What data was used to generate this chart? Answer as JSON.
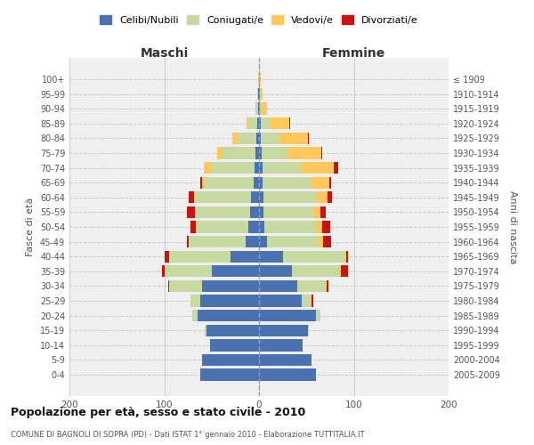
{
  "age_groups": [
    "0-4",
    "5-9",
    "10-14",
    "15-19",
    "20-24",
    "25-29",
    "30-34",
    "35-39",
    "40-44",
    "45-49",
    "50-54",
    "55-59",
    "60-64",
    "65-69",
    "70-74",
    "75-79",
    "80-84",
    "85-89",
    "90-94",
    "95-99",
    "100+"
  ],
  "birth_years": [
    "2005-2009",
    "2000-2004",
    "1995-1999",
    "1990-1994",
    "1985-1989",
    "1980-1984",
    "1975-1979",
    "1970-1974",
    "1965-1969",
    "1960-1964",
    "1955-1959",
    "1950-1954",
    "1945-1949",
    "1940-1944",
    "1935-1939",
    "1930-1934",
    "1925-1929",
    "1920-1924",
    "1915-1919",
    "1910-1914",
    "≤ 1909"
  ],
  "maschi": {
    "celibi": [
      62,
      60,
      52,
      55,
      65,
      62,
      60,
      50,
      30,
      14,
      11,
      9,
      8,
      6,
      5,
      4,
      3,
      2,
      1,
      1,
      0
    ],
    "coniugati": [
      0,
      0,
      0,
      2,
      5,
      10,
      35,
      50,
      65,
      60,
      55,
      58,
      60,
      52,
      45,
      35,
      20,
      8,
      2,
      1,
      1
    ],
    "vedovi": [
      0,
      0,
      0,
      0,
      0,
      0,
      0,
      0,
      0,
      0,
      1,
      1,
      1,
      2,
      8,
      5,
      5,
      3,
      1,
      0,
      0
    ],
    "divorziati": [
      0,
      0,
      0,
      0,
      0,
      0,
      1,
      2,
      5,
      2,
      5,
      8,
      5,
      2,
      0,
      0,
      0,
      0,
      0,
      0,
      0
    ]
  },
  "femmine": {
    "nubili": [
      60,
      55,
      46,
      52,
      60,
      45,
      40,
      35,
      25,
      8,
      6,
      5,
      5,
      4,
      4,
      3,
      2,
      2,
      1,
      1,
      0
    ],
    "coniugate": [
      0,
      0,
      0,
      1,
      5,
      10,
      30,
      50,
      65,
      55,
      55,
      52,
      55,
      50,
      40,
      28,
      20,
      10,
      2,
      1,
      1
    ],
    "vedove": [
      0,
      0,
      0,
      0,
      0,
      0,
      1,
      1,
      2,
      5,
      6,
      8,
      12,
      20,
      35,
      35,
      30,
      20,
      5,
      2,
      1
    ],
    "divorziate": [
      0,
      0,
      0,
      0,
      0,
      2,
      2,
      8,
      2,
      8,
      8,
      5,
      5,
      2,
      5,
      1,
      1,
      1,
      0,
      0,
      0
    ]
  },
  "colors": {
    "celibe": "#4a72b0",
    "coniugato": "#c5d9a0",
    "vedovo": "#ffc85c",
    "divorziato": "#cc1111"
  },
  "xlim": 200,
  "title": "Popolazione per età, sesso e stato civile - 2010",
  "subtitle": "COMUNE DI BAGNOLI DI SOPRA (PD) - Dati ISTAT 1° gennaio 2010 - Elaborazione TUTTITALIA.IT",
  "xlabel_left": "Maschi",
  "xlabel_right": "Femmine",
  "ylabel_left": "Fasce di età",
  "ylabel_right": "Anni di nascita",
  "legend_labels": [
    "Celibi/Nubili",
    "Coniugati/e",
    "Vedovi/e",
    "Divorziati/e"
  ]
}
